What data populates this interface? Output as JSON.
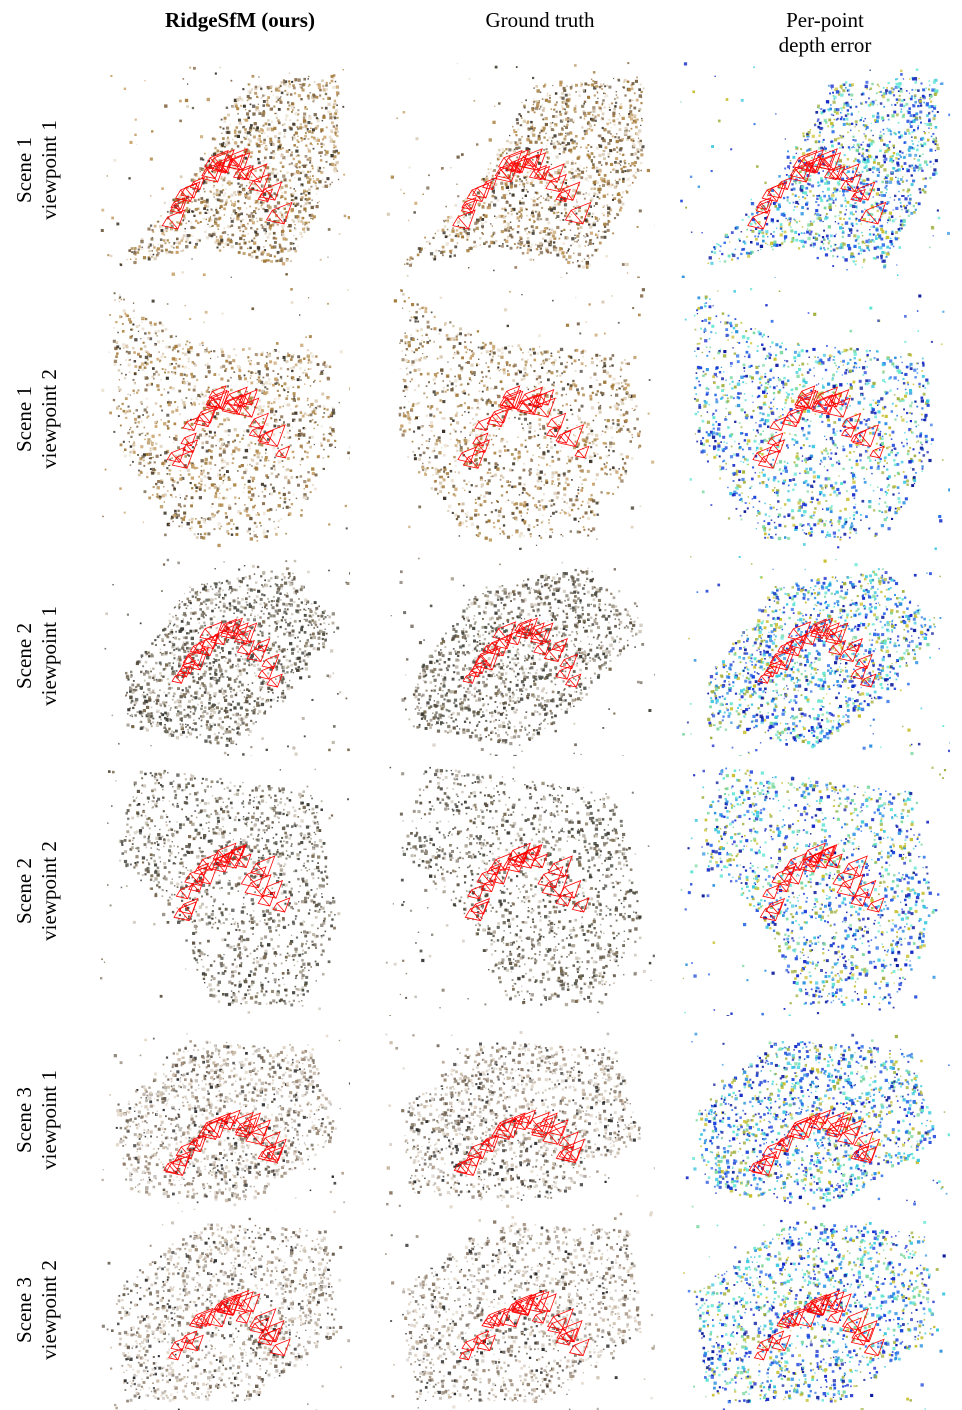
{
  "columns": [
    {
      "label": "RidgeSfM (ours)",
      "bold": true
    },
    {
      "label": "Ground truth",
      "bold": false
    },
    {
      "label": "Per-point\ndepth error",
      "bold": false
    }
  ],
  "rows": [
    {
      "line1": "Scene 1",
      "line2": "viewpoint 1"
    },
    {
      "line1": "Scene 1",
      "line2": "viewpoint 2"
    },
    {
      "line1": "Scene 2",
      "line2": "viewpoint 1"
    },
    {
      "line1": "Scene 2",
      "line2": "viewpoint 2"
    },
    {
      "line1": "Scene 3",
      "line2": "viewpoint 1"
    },
    {
      "line1": "Scene 3",
      "line2": "viewpoint 2"
    }
  ],
  "colors": {
    "camera_trajectory": "#ff0000",
    "scene1_palette": [
      "#a07838",
      "#c8a068",
      "#6e5a3c",
      "#3c3428",
      "#d8c8b0",
      "#8c7050",
      "#b08848",
      "#eae0d0"
    ],
    "scene2_palette": [
      "#5a5040",
      "#7a6a50",
      "#3c3a34",
      "#8c8478",
      "#b0a898",
      "#605848",
      "#4a4e44",
      "#d0c8bc"
    ],
    "scene3_palette": [
      "#2e2e2e",
      "#a08c78",
      "#c8b8a4",
      "#e0d4c4",
      "#6a5e50",
      "#8a7a68",
      "#b8b0a8",
      "#d8d0c8"
    ],
    "error_palette": [
      "#1428c8",
      "#0a1a9c",
      "#2a6ee8",
      "#3cc8e0",
      "#62e6d4",
      "#7ad8a0",
      "#a0b040",
      "#c8c030",
      "#1e46dc",
      "#2a90e0"
    ]
  }
}
